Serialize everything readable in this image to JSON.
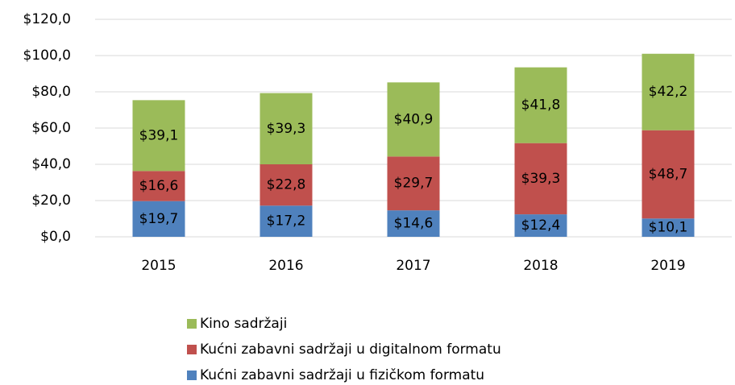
{
  "chart_data": {
    "type": "stacked_bar",
    "categories": [
      "2015",
      "2016",
      "2017",
      "2018",
      "2019"
    ],
    "series": [
      {
        "name": "Kućni zabavni sadržaji u fizičkom formatu",
        "color": "#4f81bd",
        "values": [
          19.7,
          17.2,
          14.6,
          12.4,
          10.1
        ],
        "value_labels": [
          "$19,7",
          "$17,2",
          "$14,6",
          "$12,4",
          "$10,1"
        ]
      },
      {
        "name": "Kućni zabavni sadržaji u digitalnom formatu",
        "color": "#c0504d",
        "values": [
          16.6,
          22.8,
          29.7,
          39.3,
          48.7
        ],
        "value_labels": [
          "$16,6",
          "$22,8",
          "$29,7",
          "$39,3",
          "$48,7"
        ]
      },
      {
        "name": "Kino sadržaji",
        "color": "#9bbb59",
        "values": [
          39.1,
          39.3,
          40.9,
          41.8,
          42.2
        ],
        "value_labels": [
          "$39,1",
          "$39,3",
          "$40,9",
          "$41,8",
          "$42,2"
        ]
      }
    ],
    "ylim": [
      0,
      120
    ],
    "yticks": [
      {
        "value": 0,
        "label": "$0,0"
      },
      {
        "value": 20,
        "label": "$20,0"
      },
      {
        "value": 40,
        "label": "$40,0"
      },
      {
        "value": 60,
        "label": "$60,0"
      },
      {
        "value": 80,
        "label": "$80,0"
      },
      {
        "value": 100,
        "label": "$100,0"
      },
      {
        "value": 120,
        "label": "$120,0"
      }
    ],
    "grid": true,
    "legend": "bottom"
  }
}
